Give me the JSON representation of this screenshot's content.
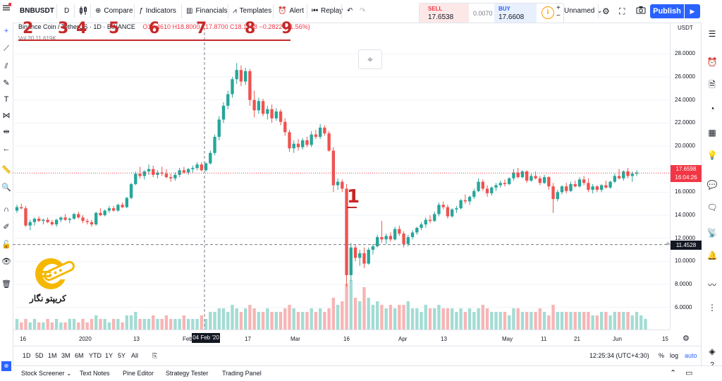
{
  "toolbar": {
    "symbol": "BNBUSDT",
    "interval": "D",
    "compare": "Compare",
    "indicators": "Indicators",
    "financials": "Financials",
    "templates": "Templates",
    "alert": "Alert",
    "replay": "Replay",
    "layout_name": "Unnamed",
    "publish": "Publish"
  },
  "trade": {
    "sell_label": "SELL",
    "sell_price": "17.6538",
    "spread": "0.0070",
    "buy_label": "BUY",
    "buy_price": "17.6608"
  },
  "legend": {
    "title": "Binance Coin / TetherUS · 1D · BINANCE",
    "ohlc": "O18.4610  H18.8000  L17.8700  C18.1788  −0.2822 (−1.56%)",
    "volume": "Vol 20  11.619K"
  },
  "annotations": [
    "2",
    "3",
    "4",
    "5",
    "6",
    "7",
    "8",
    "9",
    "1"
  ],
  "price_scale": {
    "currency": "USDT",
    "ticks": [
      "28.0000",
      "26.0000",
      "24.0000",
      "22.0000",
      "20.0000",
      "18.0000",
      "16.0000",
      "14.0000",
      "12.0000",
      "10.0000",
      "8.0000",
      "6.0000"
    ],
    "last_price": "17.6598",
    "countdown": "16:04:26",
    "crosshair_price": "11.4528"
  },
  "time_axis": {
    "ticks": [
      "16",
      "2020",
      "13",
      "Feb",
      "17",
      "Mar",
      "16",
      "Apr",
      "13",
      "May",
      "11",
      "21",
      "Jun",
      "15"
    ],
    "crosshair_label": "04 Feb '20"
  },
  "range_bar": {
    "ranges": [
      "1D",
      "5D",
      "1M",
      "3M",
      "6M",
      "YTD",
      "1Y",
      "5Y",
      "All"
    ],
    "clock": "12:25:34 (UTC+4:30)",
    "percent": "%",
    "log": "log",
    "auto": "auto"
  },
  "bottom_panel": {
    "tabs": [
      "Stock Screener",
      "Text Notes",
      "Pine Editor",
      "Strategy Tester",
      "Trading Panel"
    ]
  },
  "watermark": {
    "text": "کریپتو نگار"
  },
  "chart_data": {
    "type": "candlestick",
    "symbol": "BNBUSDT",
    "interval": "1D",
    "ylim": [
      5,
      29
    ],
    "candles": [
      [
        14.4,
        14.9,
        14.2,
        14.7
      ],
      [
        14.7,
        15.0,
        14.5,
        14.6
      ],
      [
        14.6,
        14.8,
        13.0,
        13.1
      ],
      [
        13.1,
        13.6,
        12.7,
        13.4
      ],
      [
        13.4,
        13.8,
        13.1,
        13.7
      ],
      [
        13.7,
        13.9,
        13.4,
        13.5
      ],
      [
        13.5,
        13.7,
        13.2,
        13.6
      ],
      [
        13.6,
        13.8,
        13.3,
        13.4
      ],
      [
        13.4,
        13.6,
        13.1,
        13.2
      ],
      [
        13.2,
        13.7,
        13.0,
        13.6
      ],
      [
        13.6,
        13.9,
        13.4,
        13.8
      ],
      [
        13.8,
        14.1,
        13.5,
        13.6
      ],
      [
        13.6,
        13.8,
        13.3,
        13.7
      ],
      [
        13.7,
        14.2,
        13.6,
        14.1
      ],
      [
        14.1,
        14.3,
        13.7,
        13.8
      ],
      [
        13.8,
        14.0,
        13.3,
        13.5
      ],
      [
        13.5,
        13.7,
        13.2,
        13.4
      ],
      [
        13.4,
        13.6,
        13.0,
        13.2
      ],
      [
        13.2,
        14.3,
        13.1,
        14.2
      ],
      [
        14.2,
        14.6,
        13.9,
        14.0
      ],
      [
        14.0,
        14.5,
        13.9,
        14.4
      ],
      [
        14.4,
        14.8,
        14.2,
        14.6
      ],
      [
        14.6,
        14.8,
        14.3,
        14.4
      ],
      [
        14.4,
        15.0,
        14.3,
        14.9
      ],
      [
        14.9,
        15.1,
        14.6,
        14.7
      ],
      [
        14.7,
        15.6,
        14.6,
        15.5
      ],
      [
        15.5,
        16.8,
        15.4,
        16.7
      ],
      [
        16.7,
        17.8,
        16.6,
        17.6
      ],
      [
        17.6,
        18.2,
        17.2,
        17.4
      ],
      [
        17.4,
        17.9,
        17.1,
        17.8
      ],
      [
        17.8,
        18.4,
        17.5,
        18.0
      ],
      [
        18.0,
        18.3,
        17.3,
        17.5
      ],
      [
        17.5,
        17.9,
        17.2,
        17.7
      ],
      [
        17.7,
        18.2,
        17.4,
        17.6
      ],
      [
        17.6,
        18.0,
        17.2,
        17.3
      ],
      [
        17.3,
        17.6,
        16.9,
        17.2
      ],
      [
        17.2,
        17.7,
        17.0,
        17.5
      ],
      [
        17.5,
        18.1,
        17.3,
        17.9
      ],
      [
        17.9,
        18.2,
        17.6,
        17.7
      ],
      [
        17.7,
        18.1,
        17.5,
        18.0
      ],
      [
        18.0,
        18.3,
        17.7,
        18.1
      ],
      [
        18.1,
        18.6,
        17.9,
        18.4
      ],
      [
        18.4,
        18.6,
        17.8,
        17.9
      ],
      [
        17.9,
        18.6,
        17.8,
        18.5
      ],
      [
        18.5,
        19.6,
        18.4,
        19.4
      ],
      [
        19.4,
        21.0,
        19.2,
        20.8
      ],
      [
        20.8,
        22.6,
        20.5,
        22.3
      ],
      [
        22.3,
        23.8,
        22.0,
        23.5
      ],
      [
        23.5,
        24.8,
        23.2,
        24.5
      ],
      [
        24.5,
        26.0,
        24.2,
        25.8
      ],
      [
        25.8,
        27.2,
        25.4,
        26.6
      ],
      [
        26.6,
        27.0,
        25.2,
        25.6
      ],
      [
        25.6,
        26.8,
        25.3,
        26.5
      ],
      [
        26.5,
        26.7,
        23.5,
        24.0
      ],
      [
        24.0,
        24.8,
        22.5,
        23.1
      ],
      [
        23.1,
        24.2,
        22.8,
        23.9
      ],
      [
        23.9,
        24.1,
        22.6,
        22.8
      ],
      [
        22.8,
        23.5,
        22.3,
        23.2
      ],
      [
        23.2,
        23.6,
        22.0,
        22.4
      ],
      [
        22.4,
        23.3,
        22.2,
        23.0
      ],
      [
        23.0,
        23.2,
        21.8,
        22.1
      ],
      [
        22.1,
        22.4,
        20.9,
        21.2
      ],
      [
        21.2,
        21.4,
        19.5,
        19.8
      ],
      [
        19.8,
        20.5,
        19.4,
        20.2
      ],
      [
        20.2,
        20.6,
        19.6,
        19.9
      ],
      [
        19.9,
        20.7,
        19.7,
        20.5
      ],
      [
        20.5,
        20.8,
        19.9,
        20.1
      ],
      [
        20.1,
        21.3,
        19.9,
        21.0
      ],
      [
        21.0,
        21.4,
        20.6,
        20.8
      ],
      [
        20.8,
        21.9,
        20.6,
        21.6
      ],
      [
        21.6,
        21.8,
        20.9,
        21.1
      ],
      [
        21.1,
        21.3,
        19.5,
        19.6
      ],
      [
        19.6,
        19.9,
        16.0,
        16.6
      ],
      [
        16.6,
        17.2,
        16.2,
        16.9
      ],
      [
        16.9,
        17.1,
        16.0,
        16.3
      ],
      [
        16.3,
        16.7,
        7.8,
        8.8
      ],
      [
        8.8,
        11.6,
        8.3,
        11.2
      ],
      [
        11.2,
        11.5,
        10.0,
        10.3
      ],
      [
        10.3,
        11.0,
        9.6,
        10.7
      ],
      [
        10.7,
        11.2,
        9.4,
        9.8
      ],
      [
        9.8,
        11.2,
        9.7,
        11.0
      ],
      [
        11.0,
        11.5,
        10.6,
        11.3
      ],
      [
        11.3,
        12.3,
        11.2,
        12.1
      ],
      [
        12.1,
        13.5,
        11.6,
        11.9
      ],
      [
        11.9,
        12.4,
        11.5,
        12.2
      ],
      [
        12.2,
        12.5,
        11.7,
        11.9
      ],
      [
        11.9,
        13.0,
        11.8,
        12.8
      ],
      [
        12.8,
        13.1,
        12.2,
        12.4
      ],
      [
        12.4,
        12.6,
        11.2,
        11.5
      ],
      [
        11.5,
        12.3,
        11.3,
        12.1
      ],
      [
        12.1,
        12.7,
        11.9,
        12.5
      ],
      [
        12.5,
        13.0,
        12.3,
        12.9
      ],
      [
        12.9,
        13.4,
        12.7,
        13.2
      ],
      [
        13.2,
        13.8,
        12.9,
        13.6
      ],
      [
        13.6,
        14.0,
        13.3,
        13.5
      ],
      [
        13.5,
        14.3,
        13.4,
        14.1
      ],
      [
        14.1,
        15.1,
        13.9,
        14.9
      ],
      [
        14.9,
        15.2,
        14.5,
        14.7
      ],
      [
        14.7,
        14.9,
        13.7,
        13.9
      ],
      [
        13.9,
        14.6,
        13.8,
        14.5
      ],
      [
        14.5,
        14.8,
        14.2,
        14.6
      ],
      [
        14.6,
        15.4,
        14.5,
        15.3
      ],
      [
        15.3,
        15.8,
        15.0,
        15.2
      ],
      [
        15.2,
        15.7,
        14.9,
        15.6
      ],
      [
        15.6,
        16.3,
        15.4,
        16.1
      ],
      [
        16.1,
        17.2,
        16.0,
        16.9
      ],
      [
        16.9,
        17.1,
        16.1,
        16.3
      ],
      [
        16.3,
        16.6,
        15.6,
        15.9
      ],
      [
        15.9,
        16.5,
        15.7,
        16.4
      ],
      [
        16.4,
        16.8,
        16.1,
        16.6
      ],
      [
        16.6,
        17.0,
        16.4,
        16.8
      ],
      [
        16.8,
        17.1,
        16.5,
        16.7
      ],
      [
        16.7,
        17.3,
        16.6,
        17.2
      ],
      [
        17.2,
        18.0,
        17.0,
        17.7
      ],
      [
        17.7,
        18.1,
        17.2,
        17.3
      ],
      [
        17.3,
        17.9,
        17.2,
        17.8
      ],
      [
        17.8,
        17.9,
        16.8,
        17.0
      ],
      [
        17.0,
        17.6,
        16.9,
        17.4
      ],
      [
        17.4,
        17.8,
        17.1,
        17.2
      ],
      [
        17.2,
        17.4,
        16.6,
        16.8
      ],
      [
        16.8,
        17.5,
        16.7,
        17.3
      ],
      [
        17.3,
        17.4,
        16.2,
        16.5
      ],
      [
        16.5,
        16.8,
        14.2,
        15.4
      ],
      [
        15.4,
        16.2,
        15.2,
        16.0
      ],
      [
        16.0,
        16.6,
        15.8,
        16.5
      ],
      [
        16.5,
        16.8,
        15.9,
        16.1
      ],
      [
        16.1,
        16.9,
        16.0,
        16.7
      ],
      [
        16.7,
        17.0,
        16.4,
        16.5
      ],
      [
        16.5,
        17.3,
        16.4,
        17.1
      ],
      [
        17.1,
        17.4,
        16.6,
        16.8
      ],
      [
        16.8,
        17.2,
        16.0,
        16.2
      ],
      [
        16.2,
        16.7,
        15.9,
        16.5
      ],
      [
        16.5,
        16.6,
        16.0,
        16.2
      ],
      [
        16.2,
        16.7,
        16.0,
        16.6
      ],
      [
        16.6,
        17.0,
        16.3,
        16.4
      ],
      [
        16.4,
        17.0,
        16.3,
        16.9
      ],
      [
        16.9,
        17.6,
        16.8,
        17.4
      ],
      [
        17.4,
        18.0,
        17.1,
        17.2
      ],
      [
        17.2,
        17.9,
        17.0,
        17.8
      ],
      [
        17.8,
        18.1,
        17.2,
        17.4
      ],
      [
        17.4,
        17.8,
        16.9,
        17.6
      ],
      [
        17.6,
        17.9,
        17.4,
        17.7
      ]
    ],
    "volume": [
      3,
      2,
      3,
      2,
      3,
      2,
      2,
      3,
      2,
      3,
      2,
      2,
      3,
      3,
      2,
      3,
      2,
      3,
      4,
      3,
      3,
      2,
      3,
      3,
      2,
      4,
      4,
      5,
      3,
      3,
      3,
      4,
      3,
      3,
      4,
      3,
      3,
      3,
      4,
      3,
      3,
      3,
      4,
      3,
      5,
      5,
      6,
      6,
      5,
      7,
      6,
      5,
      6,
      7,
      6,
      5,
      5,
      6,
      5,
      5,
      5,
      6,
      7,
      6,
      5,
      5,
      5,
      6,
      5,
      6,
      5,
      6,
      9,
      7,
      8,
      13,
      14,
      9,
      8,
      12,
      9,
      7,
      8,
      7,
      6,
      7,
      6,
      7,
      7,
      8,
      6,
      6,
      5,
      7,
      6,
      6,
      7,
      6,
      6,
      6,
      5,
      6,
      5,
      6,
      5,
      6,
      7,
      6,
      5,
      5,
      5,
      5,
      4,
      6,
      6,
      5,
      5,
      5,
      5,
      6,
      5,
      4,
      7,
      5,
      5,
      5,
      5,
      5,
      5,
      5,
      5,
      4,
      4,
      5,
      5,
      4,
      5,
      5,
      5,
      5,
      4,
      5,
      4,
      3
    ]
  }
}
